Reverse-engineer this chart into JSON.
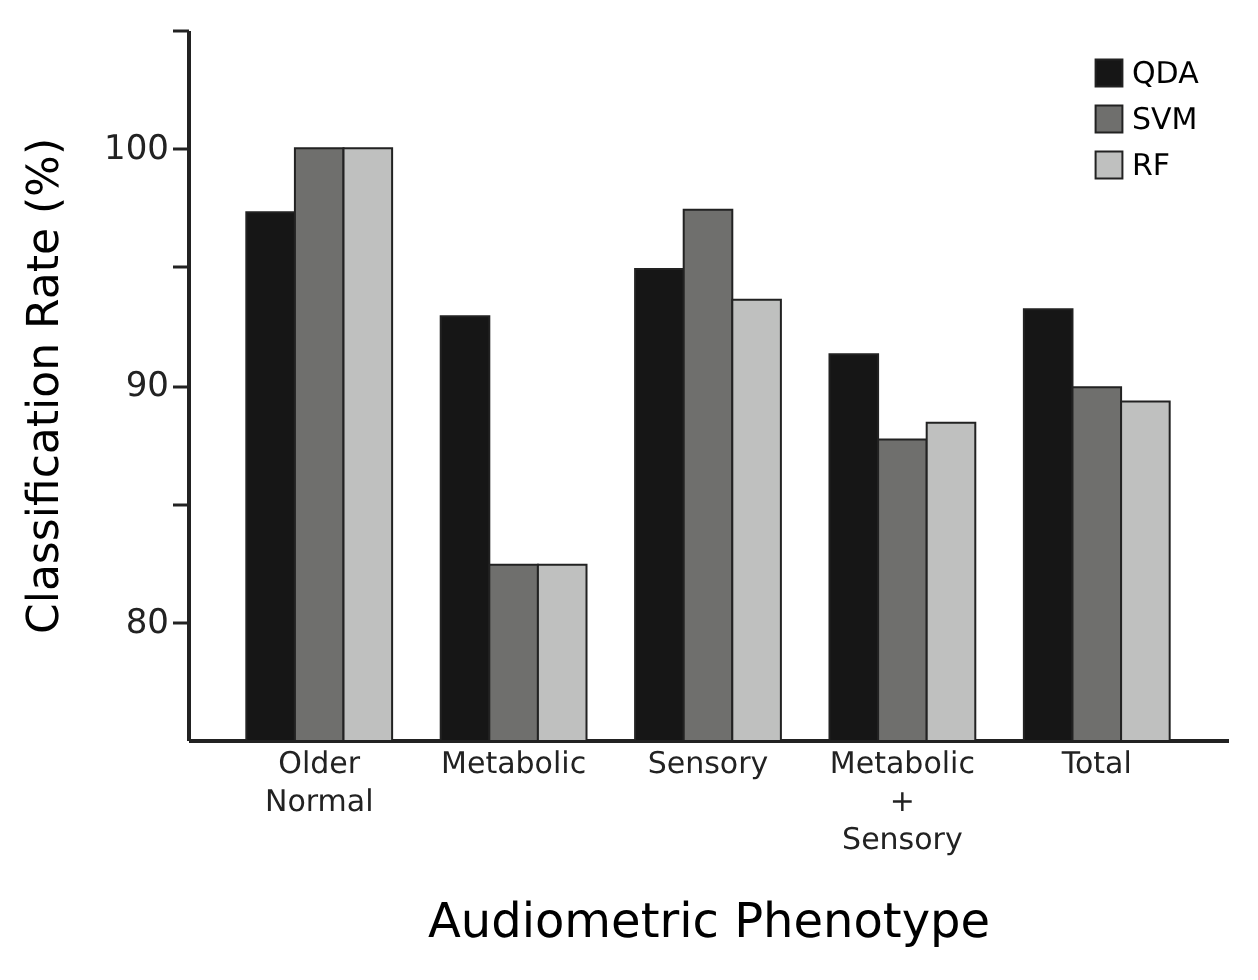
{
  "chart_data": {
    "type": "bar",
    "xlabel": "Audiometric Phenotype",
    "ylabel": "Classification Rate (%)",
    "categories": [
      "Older\nNormal",
      "Metabolic",
      "Sensory",
      "Metabolic\n+\nSensory",
      "Total"
    ],
    "series": [
      {
        "name": "QDA",
        "color": "#161616",
        "values": [
          97.3,
          92.9,
          94.9,
          91.3,
          93.2
        ]
      },
      {
        "name": "SVM",
        "color": "#6f6f6d",
        "values": [
          100,
          82.4,
          97.4,
          87.7,
          89.9
        ]
      },
      {
        "name": "RF",
        "color": "#bfc0bf",
        "values": [
          100,
          82.4,
          93.6,
          88.4,
          89.3
        ]
      }
    ],
    "ylim": [
      75,
      105
    ],
    "yticks": [
      80,
      {
        "value": 85,
        "label": null
      },
      90,
      {
        "value": 95,
        "label": null
      },
      100,
      {
        "value": 105,
        "label": null
      }
    ],
    "grid": false,
    "legend": "top right"
  }
}
